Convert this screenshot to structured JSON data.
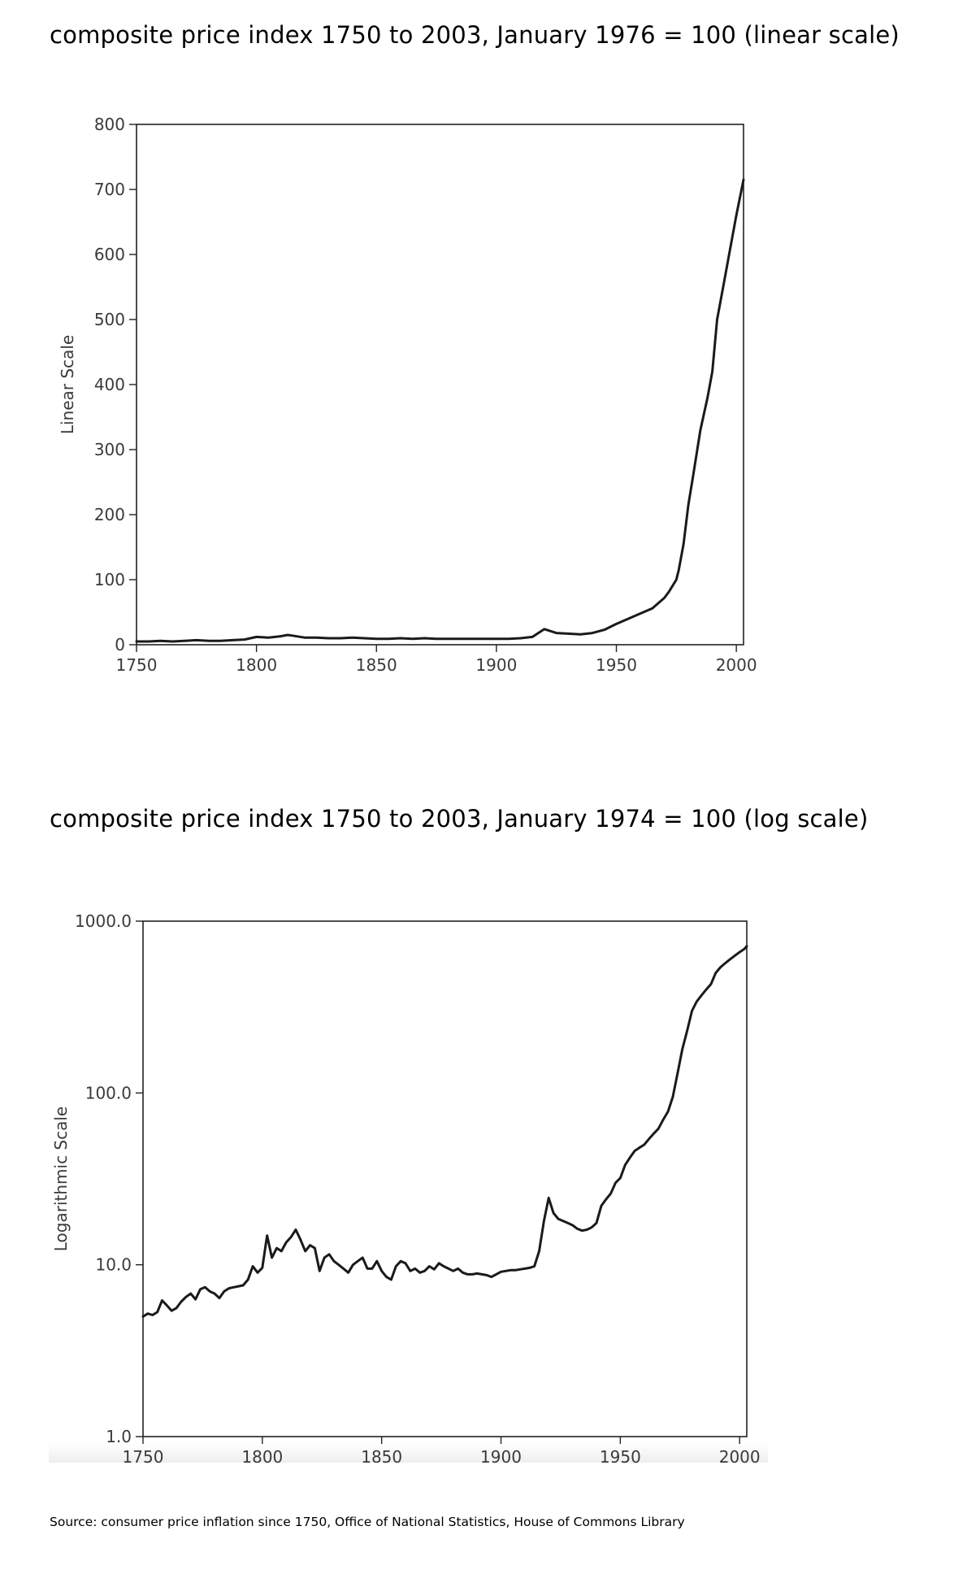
{
  "source_text": "Source: consumer price inflation since 1750, Office of National Statistics, House of Commons Library",
  "chart_data": [
    {
      "type": "line",
      "title": "composite price index 1750 to 2003, January 1976 = 100 (linear scale)",
      "xlabel": "",
      "ylabel": "Linear Scale",
      "xlim": [
        1750,
        2003
      ],
      "ylim": [
        0,
        800
      ],
      "scale": "linear",
      "grid": false,
      "x_ticks": [
        1750,
        1800,
        1850,
        1900,
        1950,
        2000
      ],
      "x_tick_labels": [
        "1750",
        "1800",
        "1850",
        "1900",
        "1950",
        "2000"
      ],
      "y_ticks": [
        0,
        100,
        200,
        300,
        400,
        500,
        600,
        700,
        800
      ],
      "y_tick_labels": [
        "0",
        "100",
        "200",
        "300",
        "400",
        "500",
        "600",
        "700",
        "800"
      ],
      "series": [
        {
          "color": "#1a1a1a",
          "x": [
            1750,
            1755,
            1760,
            1765,
            1770,
            1775,
            1780,
            1785,
            1790,
            1795,
            1800,
            1805,
            1810,
            1813,
            1815,
            1820,
            1825,
            1830,
            1835,
            1840,
            1845,
            1850,
            1855,
            1860,
            1865,
            1870,
            1875,
            1880,
            1885,
            1890,
            1895,
            1900,
            1905,
            1910,
            1915,
            1920,
            1925,
            1930,
            1935,
            1940,
            1945,
            1950,
            1955,
            1960,
            1965,
            1970,
            1972,
            1975,
            1976,
            1978,
            1980,
            1982,
            1985,
            1988,
            1990,
            1992,
            1995,
            1998,
            2000,
            2003
          ],
          "y": [
            5,
            5,
            6,
            5,
            6,
            7,
            6,
            6,
            7,
            8,
            12,
            11,
            13,
            15,
            14,
            11,
            11,
            10,
            10,
            11,
            10,
            9,
            9,
            10,
            9,
            10,
            9,
            9,
            9,
            9,
            9,
            9,
            9,
            10,
            12,
            24,
            18,
            17,
            16,
            18,
            23,
            32,
            40,
            48,
            56,
            72,
            82,
            100,
            115,
            155,
            215,
            260,
            330,
            380,
            420,
            500,
            560,
            620,
            660,
            715
          ]
        }
      ]
    },
    {
      "type": "line",
      "title": "composite price index 1750 to 2003, January 1974 = 100 (log scale)",
      "xlabel": "",
      "ylabel": "Logarithmic Scale",
      "xlim": [
        1750,
        2003
      ],
      "ylim": [
        1,
        1000
      ],
      "scale": "log",
      "grid": false,
      "x_ticks": [
        1750,
        1800,
        1850,
        1900,
        1950,
        2000
      ],
      "x_tick_labels": [
        "1750",
        "1800",
        "1850",
        "1900",
        "1950",
        "2000"
      ],
      "y_ticks": [
        1,
        10,
        100,
        1000
      ],
      "y_tick_labels": [
        "1.0",
        "10.0",
        "100.0",
        "1000.0"
      ],
      "series": [
        {
          "color": "#1a1a1a",
          "x": [
            1750,
            1752,
            1754,
            1756,
            1758,
            1760,
            1762,
            1764,
            1766,
            1768,
            1770,
            1772,
            1774,
            1776,
            1778,
            1780,
            1782,
            1784,
            1786,
            1788,
            1790,
            1792,
            1794,
            1796,
            1798,
            1800,
            1802,
            1804,
            1806,
            1808,
            1810,
            1812,
            1814,
            1816,
            1818,
            1820,
            1822,
            1824,
            1826,
            1828,
            1830,
            1832,
            1834,
            1836,
            1838,
            1840,
            1842,
            1844,
            1846,
            1848,
            1850,
            1852,
            1854,
            1856,
            1858,
            1860,
            1862,
            1864,
            1866,
            1868,
            1870,
            1872,
            1874,
            1876,
            1878,
            1880,
            1882,
            1884,
            1886,
            1888,
            1890,
            1892,
            1894,
            1896,
            1898,
            1900,
            1902,
            1904,
            1906,
            1908,
            1910,
            1912,
            1914,
            1916,
            1918,
            1920,
            1922,
            1924,
            1926,
            1928,
            1930,
            1932,
            1934,
            1936,
            1938,
            1940,
            1942,
            1944,
            1946,
            1948,
            1950,
            1952,
            1954,
            1956,
            1958,
            1960,
            1962,
            1964,
            1966,
            1968,
            1970,
            1972,
            1974,
            1976,
            1978,
            1980,
            1982,
            1984,
            1986,
            1988,
            1990,
            1992,
            1994,
            1996,
            1998,
            2000,
            2002,
            2003
          ],
          "y": [
            5.0,
            5.2,
            5.1,
            5.3,
            6.2,
            5.8,
            5.4,
            5.6,
            6.1,
            6.5,
            6.8,
            6.3,
            7.2,
            7.4,
            7.0,
            6.8,
            6.4,
            7.0,
            7.3,
            7.4,
            7.5,
            7.6,
            8.2,
            9.8,
            9.0,
            9.6,
            14.8,
            11.0,
            12.5,
            12.0,
            13.5,
            14.5,
            16.0,
            14.0,
            12.0,
            13.0,
            12.5,
            9.2,
            11.0,
            11.5,
            10.5,
            10.0,
            9.5,
            9.0,
            10.0,
            10.5,
            11.0,
            9.5,
            9.5,
            10.5,
            9.2,
            8.5,
            8.2,
            9.8,
            10.5,
            10.2,
            9.2,
            9.5,
            9.0,
            9.2,
            9.8,
            9.4,
            10.2,
            9.8,
            9.5,
            9.2,
            9.5,
            9.0,
            8.8,
            8.8,
            8.9,
            8.8,
            8.7,
            8.5,
            8.8,
            9.1,
            9.2,
            9.3,
            9.3,
            9.4,
            9.5,
            9.6,
            9.8,
            12.0,
            18.0,
            24.5,
            20.0,
            18.5,
            18.0,
            17.5,
            17.0,
            16.2,
            15.8,
            16.0,
            16.5,
            17.5,
            22.0,
            24.0,
            26.0,
            30.0,
            32.0,
            38.0,
            42.0,
            46.0,
            48.0,
            50.0,
            54.0,
            58.0,
            62.0,
            70.0,
            78.0,
            95.0,
            130.0,
            180.0,
            230.0,
            300.0,
            340.0,
            370.0,
            400.0,
            430.0,
            500.0,
            540.0,
            570.0,
            600.0,
            630.0,
            660.0,
            690.0,
            715.0
          ]
        }
      ]
    }
  ]
}
